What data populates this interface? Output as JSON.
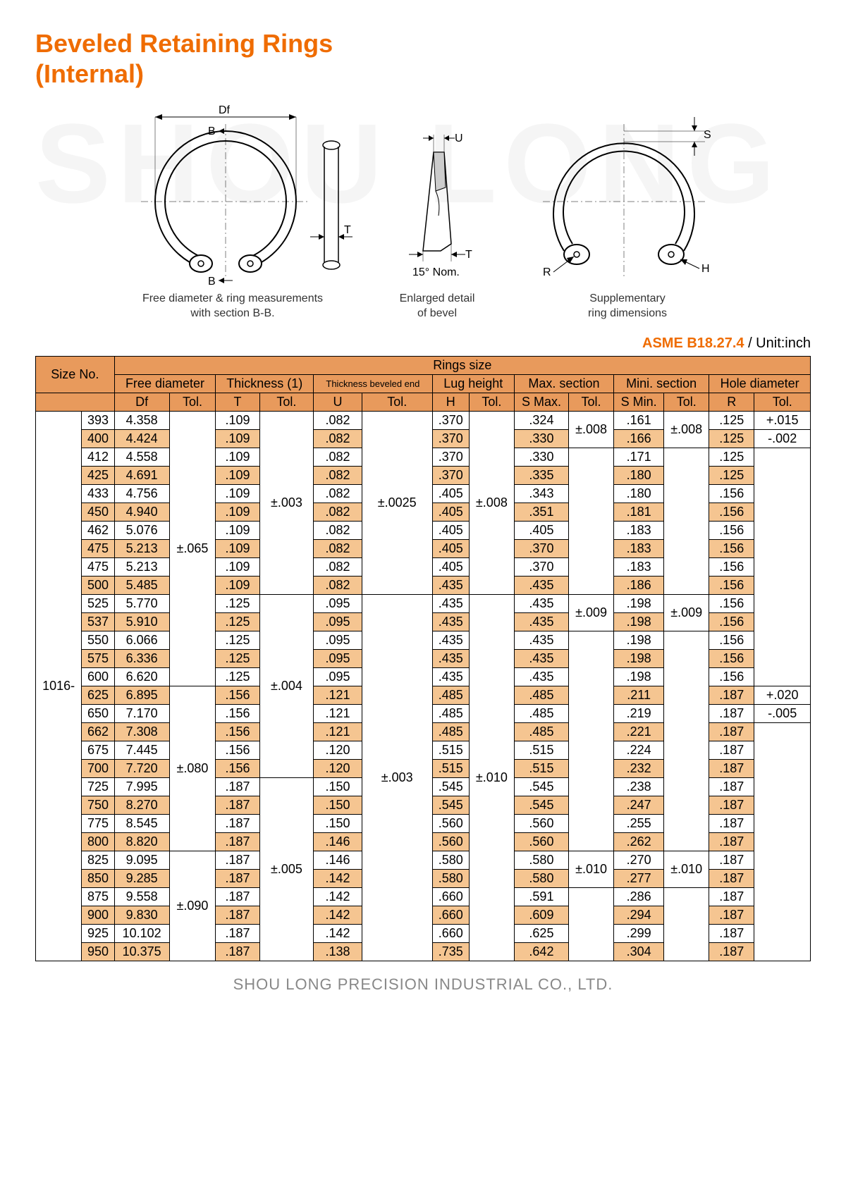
{
  "title_line1": "Beveled Retaining Rings",
  "title_line2": "(Internal)",
  "watermark": "SHOU LONG",
  "diagrams": {
    "d1_caption_l1": "Free diameter & ring measurements",
    "d1_caption_l2": "with section B-B.",
    "d2_caption_l1": "Enlarged detail",
    "d2_caption_l2": "of bevel",
    "d3_caption_l1": "Supplementary",
    "d3_caption_l2": "ring dimensions",
    "labels": {
      "Df": "Df",
      "B1": "B",
      "B2": "B",
      "T": "T",
      "U": "U",
      "T2": "T",
      "angle": "15° Nom.",
      "S": "S",
      "R": "R",
      "H": "H"
    }
  },
  "spec": {
    "standard": "ASME B18.27.4",
    "unit": " / Unit:inch"
  },
  "headers": {
    "size_no": "Size No.",
    "rings_size": "Rings size",
    "free_dia": "Free diameter",
    "thickness": "Thickness (1)",
    "thick_bevel": "Thickness beveled end",
    "lug": "Lug height",
    "max_sec": "Max. section",
    "min_sec": "Mini. section",
    "hole_dia": "Hole diameter",
    "Df": "Df",
    "T": "T",
    "U": "U",
    "H": "H",
    "SMax": "S Max.",
    "SMin": "S Min.",
    "R": "R",
    "Tol": "Tol."
  },
  "size_prefix": "1016-",
  "tol_df": [
    "±.065",
    "±.080",
    "±.090"
  ],
  "tol_t": [
    "±.003",
    "±.004",
    "±.005"
  ],
  "tol_u": [
    "±.0025",
    "±.003"
  ],
  "tol_h": [
    "±.008",
    "±.010"
  ],
  "tol_smax": [
    "±.008",
    "±.009",
    "±.010"
  ],
  "tol_smin": [
    "±.008",
    "±.009",
    "±.010"
  ],
  "tol_r": [
    "+.015",
    "-.002",
    "+.020",
    "-.005"
  ],
  "rows": [
    {
      "sz": "393",
      "df": "4.358",
      "t": ".109",
      "u": ".082",
      "h": ".370",
      "smax": ".324",
      "smin": ".161",
      "r": ".125"
    },
    {
      "sz": "400",
      "df": "4.424",
      "t": ".109",
      "u": ".082",
      "h": ".370",
      "smax": ".330",
      "smin": ".166",
      "r": ".125"
    },
    {
      "sz": "412",
      "df": "4.558",
      "t": ".109",
      "u": ".082",
      "h": ".370",
      "smax": ".330",
      "smin": ".171",
      "r": ".125"
    },
    {
      "sz": "425",
      "df": "4.691",
      "t": ".109",
      "u": ".082",
      "h": ".370",
      "smax": ".335",
      "smin": ".180",
      "r": ".125"
    },
    {
      "sz": "433",
      "df": "4.756",
      "t": ".109",
      "u": ".082",
      "h": ".405",
      "smax": ".343",
      "smin": ".180",
      "r": ".156"
    },
    {
      "sz": "450",
      "df": "4.940",
      "t": ".109",
      "u": ".082",
      "h": ".405",
      "smax": ".351",
      "smin": ".181",
      "r": ".156"
    },
    {
      "sz": "462",
      "df": "5.076",
      "t": ".109",
      "u": ".082",
      "h": ".405",
      "smax": ".405",
      "smin": ".183",
      "r": ".156"
    },
    {
      "sz": "475",
      "df": "5.213",
      "t": ".109",
      "u": ".082",
      "h": ".405",
      "smax": ".370",
      "smin": ".183",
      "r": ".156"
    },
    {
      "sz": "475",
      "df": "5.213",
      "t": ".109",
      "u": ".082",
      "h": ".405",
      "smax": ".370",
      "smin": ".183",
      "r": ".156"
    },
    {
      "sz": "500",
      "df": "5.485",
      "t": ".109",
      "u": ".082",
      "h": ".435",
      "smax": ".435",
      "smin": ".186",
      "r": ".156"
    },
    {
      "sz": "525",
      "df": "5.770",
      "t": ".125",
      "u": ".095",
      "h": ".435",
      "smax": ".435",
      "smin": ".198",
      "r": ".156"
    },
    {
      "sz": "537",
      "df": "5.910",
      "t": ".125",
      "u": ".095",
      "h": ".435",
      "smax": ".435",
      "smin": ".198",
      "r": ".156"
    },
    {
      "sz": "550",
      "df": "6.066",
      "t": ".125",
      "u": ".095",
      "h": ".435",
      "smax": ".435",
      "smin": ".198",
      "r": ".156"
    },
    {
      "sz": "575",
      "df": "6.336",
      "t": ".125",
      "u": ".095",
      "h": ".435",
      "smax": ".435",
      "smin": ".198",
      "r": ".156"
    },
    {
      "sz": "600",
      "df": "6.620",
      "t": ".125",
      "u": ".095",
      "h": ".435",
      "smax": ".435",
      "smin": ".198",
      "r": ".156"
    },
    {
      "sz": "625",
      "df": "6.895",
      "t": ".156",
      "u": ".121",
      "h": ".485",
      "smax": ".485",
      "smin": ".211",
      "r": ".187"
    },
    {
      "sz": "650",
      "df": "7.170",
      "t": ".156",
      "u": ".121",
      "h": ".485",
      "smax": ".485",
      "smin": ".219",
      "r": ".187"
    },
    {
      "sz": "662",
      "df": "7.308",
      "t": ".156",
      "u": ".121",
      "h": ".485",
      "smax": ".485",
      "smin": ".221",
      "r": ".187"
    },
    {
      "sz": "675",
      "df": "7.445",
      "t": ".156",
      "u": ".120",
      "h": ".515",
      "smax": ".515",
      "smin": ".224",
      "r": ".187"
    },
    {
      "sz": "700",
      "df": "7.720",
      "t": ".156",
      "u": ".120",
      "h": ".515",
      "smax": ".515",
      "smin": ".232",
      "r": ".187"
    },
    {
      "sz": "725",
      "df": "7.995",
      "t": ".187",
      "u": ".150",
      "h": ".545",
      "smax": ".545",
      "smin": ".238",
      "r": ".187"
    },
    {
      "sz": "750",
      "df": "8.270",
      "t": ".187",
      "u": ".150",
      "h": ".545",
      "smax": ".545",
      "smin": ".247",
      "r": ".187"
    },
    {
      "sz": "775",
      "df": "8.545",
      "t": ".187",
      "u": ".150",
      "h": ".560",
      "smax": ".560",
      "smin": ".255",
      "r": ".187"
    },
    {
      "sz": "800",
      "df": "8.820",
      "t": ".187",
      "u": ".146",
      "h": ".560",
      "smax": ".560",
      "smin": ".262",
      "r": ".187"
    },
    {
      "sz": "825",
      "df": "9.095",
      "t": ".187",
      "u": ".146",
      "h": ".580",
      "smax": ".580",
      "smin": ".270",
      "r": ".187"
    },
    {
      "sz": "850",
      "df": "9.285",
      "t": ".187",
      "u": ".142",
      "h": ".580",
      "smax": ".580",
      "smin": ".277",
      "r": ".187"
    },
    {
      "sz": "875",
      "df": "9.558",
      "t": ".187",
      "u": ".142",
      "h": ".660",
      "smax": ".591",
      "smin": ".286",
      "r": ".187"
    },
    {
      "sz": "900",
      "df": "9.830",
      "t": ".187",
      "u": ".142",
      "h": ".660",
      "smax": ".609",
      "smin": ".294",
      "r": ".187"
    },
    {
      "sz": "925",
      "df": "10.102",
      "t": ".187",
      "u": ".142",
      "h": ".660",
      "smax": ".625",
      "smin": ".299",
      "r": ".187"
    },
    {
      "sz": "950",
      "df": "10.375",
      "t": ".187",
      "u": ".138",
      "h": ".735",
      "smax": ".642",
      "smin": ".304",
      "r": ".187"
    }
  ],
  "footer": "SHOU LONG PRECISION INDUSTRIAL CO., LTD.",
  "colors": {
    "title": "#ef6c00",
    "header_bg": "#e89a5c",
    "row_alt": "#f5c591",
    "border": "#000000",
    "watermark": "#f5f5f5",
    "footer": "#888888"
  }
}
